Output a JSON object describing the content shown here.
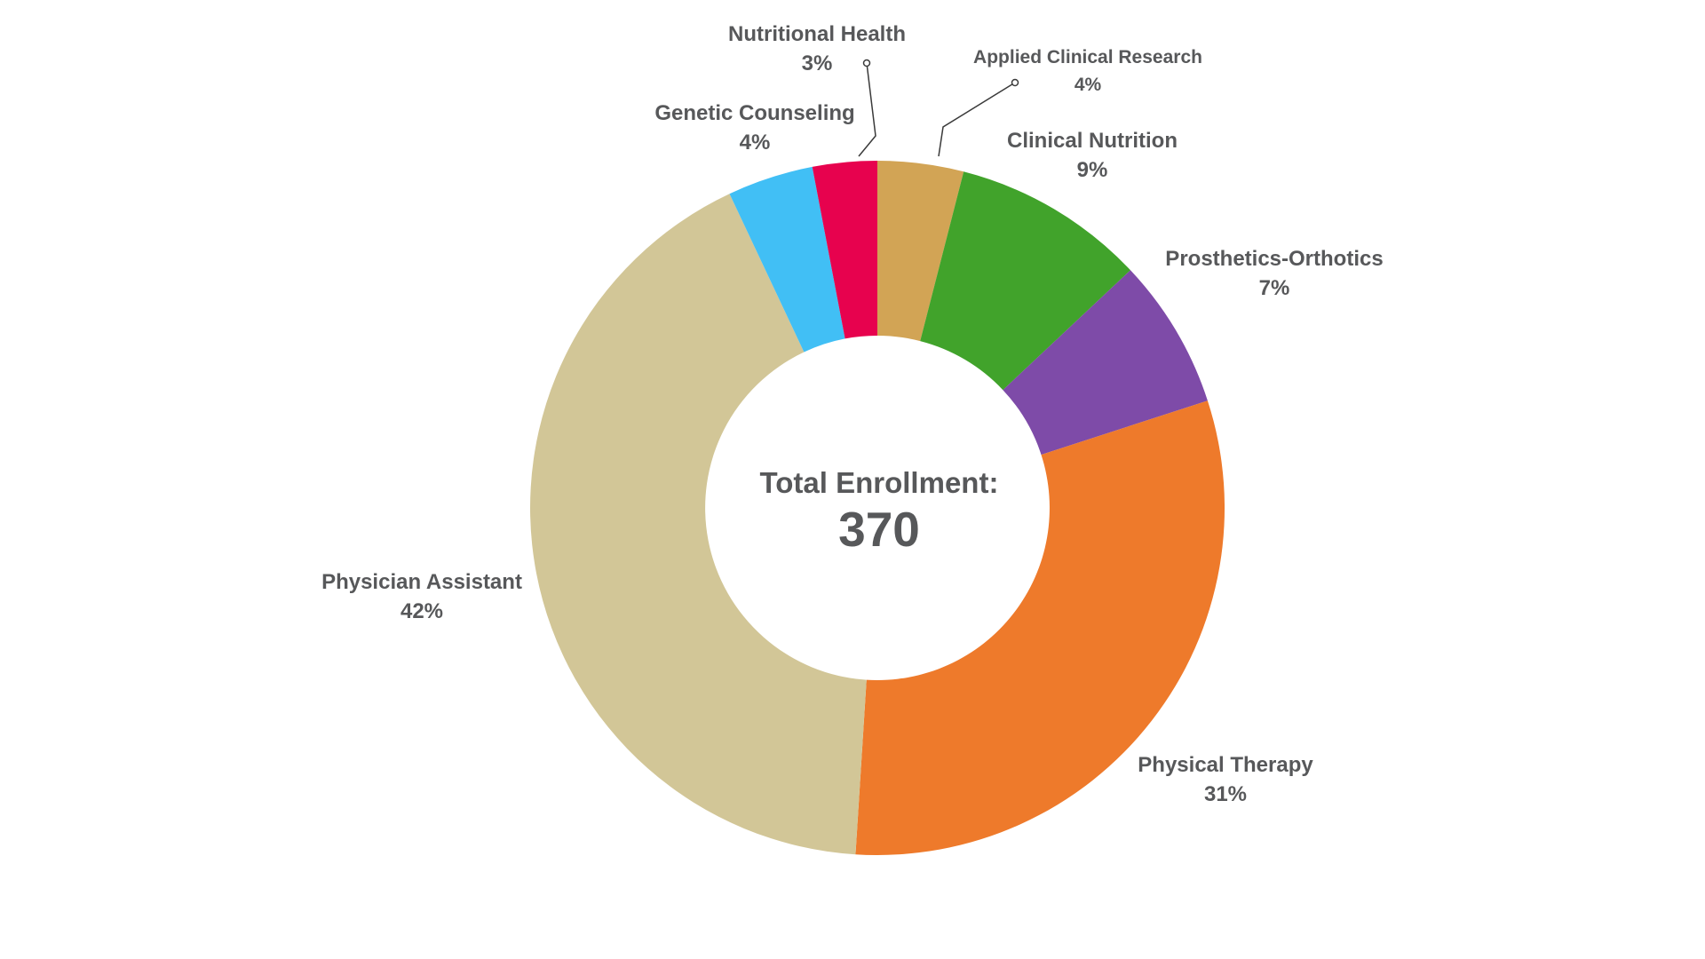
{
  "chart_data": {
    "type": "pie",
    "subtype": "donut",
    "title": "",
    "center_label": "Total Enrollment:",
    "center_value": "370",
    "total_enrollment": 370,
    "values_unit": "percent",
    "start_angle_deg": 0,
    "direction": "clockwise",
    "legend_position": "labels-around-chart",
    "grid": false,
    "text_color": "#57585A",
    "background_color": "#FFFFFF",
    "segments": [
      {
        "label": "Applied Clinical Research",
        "value": 4,
        "pct_text": "4%",
        "color": "#D2A455"
      },
      {
        "label": "Clinical Nutrition",
        "value": 9,
        "pct_text": "9%",
        "color": "#41A32B"
      },
      {
        "label": "Prosthetics-Orthotics",
        "value": 7,
        "pct_text": "7%",
        "color": "#7E4BA8"
      },
      {
        "label": "Physical Therapy",
        "value": 31,
        "pct_text": "31%",
        "color": "#EE7A2B"
      },
      {
        "label": "Physician Assistant",
        "value": 42,
        "pct_text": "42%",
        "color": "#D2C697"
      },
      {
        "label": "Genetic Counseling",
        "value": 4,
        "pct_text": "4%",
        "color": "#41BFF5"
      },
      {
        "label": "Nutritional Health",
        "value": 3,
        "pct_text": "3%",
        "color": "#E7024E"
      }
    ]
  }
}
